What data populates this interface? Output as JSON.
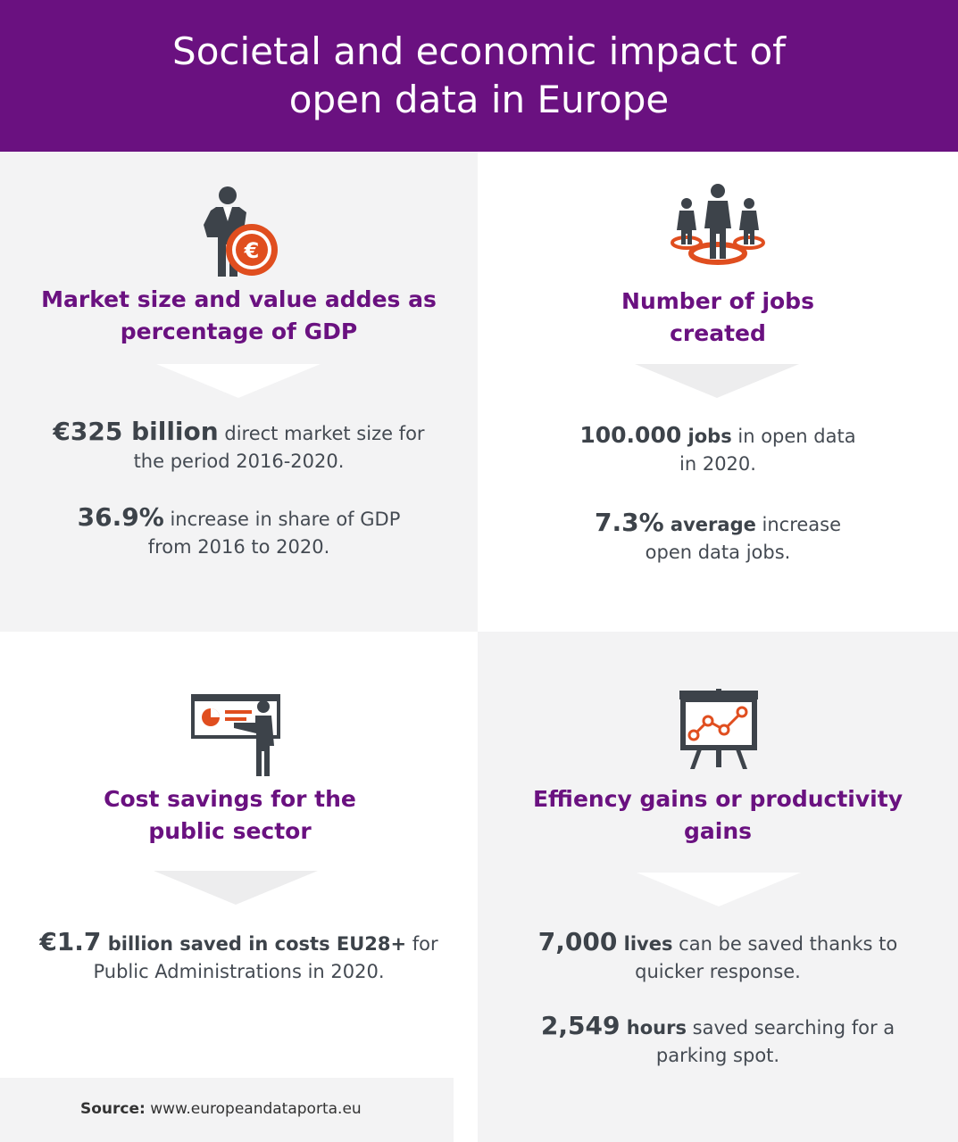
{
  "header": {
    "title_line1": "Societal and economic impact of",
    "title_line2": "open data in Europe"
  },
  "colors": {
    "purple": "#6a1180",
    "orange": "#e04e1f",
    "dark": "#3d434a",
    "panel_gray": "#f3f3f4"
  },
  "panels": {
    "market": {
      "icon": "businessman-euro-icon",
      "title_line1": "Market size and value addes as",
      "title_line2": "percentage of GDP",
      "stat1_big": "€325 billion",
      "stat1_rest": " direct market size for",
      "stat1_line2": "the period 2016-2020.",
      "stat2_big": "36.9%",
      "stat2_rest": " increase in share of GDP",
      "stat2_line2": "from 2016 to 2020."
    },
    "jobs": {
      "icon": "team-people-icon",
      "title_line1": "Number of jobs",
      "title_line2": "created",
      "stat1_big": "100.000",
      "stat1_bold": " jobs",
      "stat1_rest": " in open data",
      "stat1_line2": "in 2020.",
      "stat2_big": "7.3%",
      "stat2_bold": " average",
      "stat2_rest": " increase",
      "stat2_line2": "open data jobs."
    },
    "cost": {
      "icon": "presenter-pie-chart-icon",
      "title_line1": "Cost savings for the",
      "title_line2": "public sector",
      "stat1_big": "€1.7",
      "stat1_bold": " billion saved in costs EU28+",
      "stat1_rest": " for",
      "stat1_line2": "Public Administrations in 2020."
    },
    "efficiency": {
      "icon": "line-chart-easel-icon",
      "title_line1": "Effiency gains or productivity",
      "title_line2": "gains",
      "stat1_big": "7,000",
      "stat1_bold": " lives",
      "stat1_rest": " can be saved thanks to",
      "stat1_line2": "quicker response.",
      "stat2_big": "2,549",
      "stat2_bold": " hours",
      "stat2_rest": " saved searching for a",
      "stat2_line2": "parking spot."
    }
  },
  "source": {
    "label": "Source:",
    "url": " www.europeandataporta.eu"
  }
}
